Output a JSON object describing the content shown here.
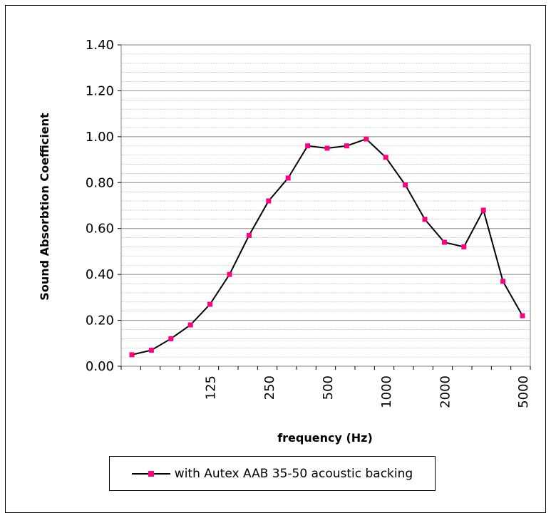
{
  "chart_data": {
    "type": "line",
    "title": "",
    "xlabel": "frequency (Hz)",
    "ylabel": "Sound Absorbtion Coefficient",
    "x_scale": "log",
    "x": [
      50,
      63,
      80,
      100,
      125,
      160,
      200,
      250,
      315,
      400,
      500,
      630,
      800,
      1000,
      1250,
      1600,
      2000,
      2500,
      3150,
      4000,
      5000
    ],
    "x_tick_labels": [
      "125",
      "250",
      "500",
      "1000",
      "2000",
      "5000"
    ],
    "ylim": [
      0,
      1.4
    ],
    "y_ticks": [
      "0.00",
      "0.20",
      "0.40",
      "0.60",
      "0.80",
      "1.00",
      "1.20",
      "1.40"
    ],
    "grid": true,
    "legend_position": "bottom",
    "series": [
      {
        "name": "with Autex AAB 35-50 acoustic backing",
        "values": [
          0.05,
          0.07,
          0.12,
          0.18,
          0.27,
          0.4,
          0.57,
          0.72,
          0.82,
          0.96,
          0.95,
          0.96,
          0.99,
          0.91,
          0.79,
          0.64,
          0.54,
          0.52,
          0.68,
          0.37,
          0.22
        ],
        "line_color": "#000000",
        "marker_color": "#ff0080"
      }
    ]
  }
}
